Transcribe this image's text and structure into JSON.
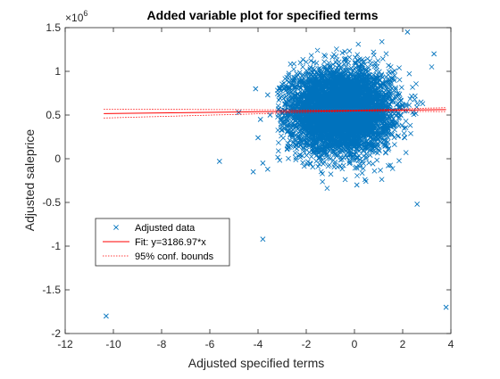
{
  "chart_data": {
    "type": "scatter",
    "title": "Added variable plot for specified terms",
    "xlabel": "Adjusted specified terms",
    "ylabel": "Adjusted saleprice",
    "y_exponent_label": "10",
    "y_exponent_power": "6",
    "xlim": [
      -12,
      4
    ],
    "ylim": [
      -2,
      1.5
    ],
    "y_scale_factor": 1000000,
    "xticks": [
      "-12",
      "-10",
      "-8",
      "-6",
      "-4",
      "-2",
      "0",
      "2",
      "4"
    ],
    "yticks": [
      "-2",
      "-1.5",
      "-1",
      "-0.5",
      "0",
      "0.5",
      "1",
      "1.5"
    ],
    "grid": false,
    "legend_position": "bottom-left",
    "legend": [
      {
        "label": "Adjusted data",
        "marker": "x",
        "color": "#0072BD"
      },
      {
        "label": "Fit: y=3186.97*x",
        "style": "solid",
        "color": "#FF0000"
      },
      {
        "label": "95% conf. bounds",
        "style": "dotted",
        "color": "#FF0000"
      }
    ],
    "fit": {
      "slope": 3186.97,
      "intercept_scaled": 0.55,
      "x_range": [
        -10.4,
        3.8
      ]
    },
    "conf_bounds": {
      "spread_at_edges_scaled": 0.045
    },
    "cloud": {
      "center": [
        -0.6,
        0.55
      ],
      "sd": [
        1.05,
        0.23
      ],
      "x_range": [
        -3.2,
        3.3
      ],
      "y_range": [
        -0.35,
        1.45
      ],
      "count": 6000
    },
    "outliers": [
      {
        "x": -10.3,
        "y": -1.8
      },
      {
        "x": 3.8,
        "y": -1.7
      },
      {
        "x": -3.8,
        "y": -0.92
      },
      {
        "x": 2.6,
        "y": -0.52
      },
      {
        "x": -5.6,
        "y": -0.03
      },
      {
        "x": -4.8,
        "y": 0.53
      },
      {
        "x": -4.2,
        "y": -0.15
      },
      {
        "x": -3.6,
        "y": -0.12
      },
      {
        "x": -3.8,
        "y": -0.05
      },
      {
        "x": -4.0,
        "y": 0.24
      },
      {
        "x": -4.1,
        "y": 0.8
      },
      {
        "x": -3.6,
        "y": 0.73
      },
      {
        "x": -3.9,
        "y": 0.45
      },
      {
        "x": -3.5,
        "y": 0.5
      },
      {
        "x": 2.2,
        "y": 1.45
      },
      {
        "x": 3.3,
        "y": 1.2
      },
      {
        "x": 0.1,
        "y": -0.3
      }
    ],
    "colors": {
      "data": "#0072BD",
      "fit": "#FF0000",
      "axes": "#262626"
    }
  }
}
